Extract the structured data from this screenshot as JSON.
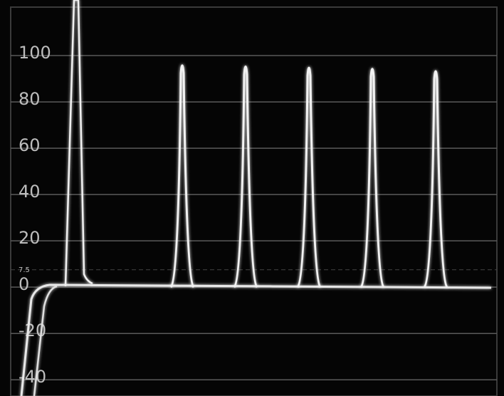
{
  "chart_data": {
    "type": "line",
    "categories": [
      null,
      null,
      null,
      null,
      null
    ],
    "series": [
      {
        "color": "#f2f2f2",
        "values": [
          98.5,
          98,
          97.5,
          97,
          96
        ]
      }
    ],
    "ylim": [
      -47,
      124
    ],
    "yticks": [
      -40,
      -20,
      0,
      7.5,
      20,
      40,
      60,
      80,
      100
    ],
    "grid": true
  }
}
